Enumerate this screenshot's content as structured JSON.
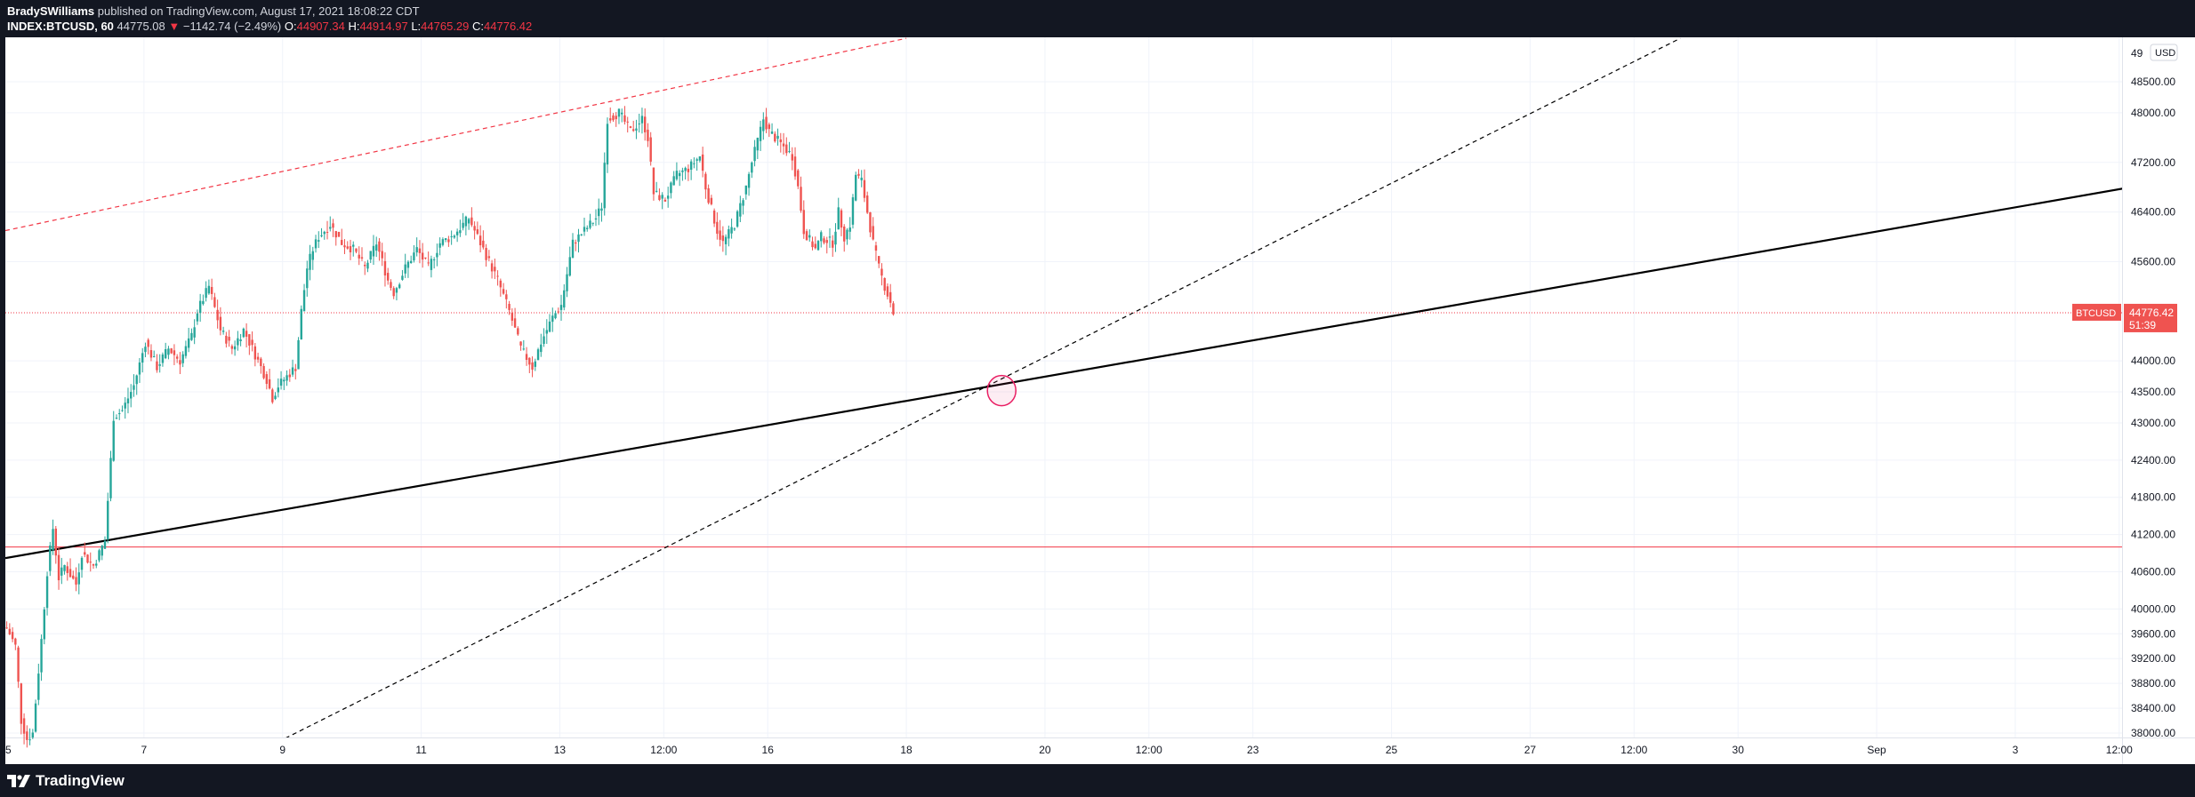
{
  "header": {
    "author": "BradySWilliams",
    "published_text": "published on TradingView.com, August 17, 2021 18:08:22 CDT",
    "symbol": "INDEX:BTCUSD, 60",
    "last": "44775.08",
    "change_arrow": "▼",
    "change": "−1142.74 (−2.49%)",
    "open_label": "O:",
    "open": "44907.34",
    "high_label": "H:",
    "high": "44914.97",
    "low_label": "L:",
    "low": "44765.29",
    "close_label": "C:",
    "close": "44776.42"
  },
  "footer": {
    "brand": "TradingView"
  },
  "colors": {
    "up": "#26a69a",
    "down": "#ef5350",
    "accent_red": "#f23645",
    "trend": "#000000",
    "background": "#131722"
  },
  "chart_data": {
    "type": "candlestick",
    "symbol": "BTCUSD",
    "interval": "60",
    "currency_label": "USD",
    "ylim": [
      37800,
      49200
    ],
    "y_ticks": [
      {
        "value": 48500,
        "label": "48500.00"
      },
      {
        "value": 48000,
        "label": "48000.00"
      },
      {
        "value": 47200,
        "label": "47200.00"
      },
      {
        "value": 46400,
        "label": "46400.00"
      },
      {
        "value": 45600,
        "label": "45600.00"
      },
      {
        "value": 44000,
        "label": "44000.00"
      },
      {
        "value": 43500,
        "label": "43500.00"
      },
      {
        "value": 43000,
        "label": "43000.00"
      },
      {
        "value": 42400,
        "label": "42400.00"
      },
      {
        "value": 41800,
        "label": "41800.00"
      },
      {
        "value": 41200,
        "label": "41200.00"
      },
      {
        "value": 40600,
        "label": "40600.00"
      },
      {
        "value": 40000,
        "label": "40000.00"
      },
      {
        "value": 39600,
        "label": "39600.00"
      },
      {
        "value": 39200,
        "label": "39200.00"
      },
      {
        "value": 38800,
        "label": "38800.00"
      },
      {
        "value": 38400,
        "label": "38400.00"
      },
      {
        "value": 38000,
        "label": "38000.00"
      }
    ],
    "y_top_partial_label": "49",
    "x_ticks": [
      {
        "t": 0,
        "label": "5"
      },
      {
        "t": 48,
        "label": "7"
      },
      {
        "t": 96,
        "label": "9"
      },
      {
        "t": 144,
        "label": "11"
      },
      {
        "t": 192,
        "label": "13"
      },
      {
        "t": 228,
        "label": "12:00"
      },
      {
        "t": 264,
        "label": "16"
      },
      {
        "t": 312,
        "label": "18"
      },
      {
        "t": 360,
        "label": "20"
      },
      {
        "t": 396,
        "label": "12:00"
      },
      {
        "t": 432,
        "label": "23"
      },
      {
        "t": 480,
        "label": "25"
      },
      {
        "t": 528,
        "label": "27"
      },
      {
        "t": 564,
        "label": "12:00"
      },
      {
        "t": 600,
        "label": "30"
      },
      {
        "t": 648,
        "label": "Sep"
      },
      {
        "t": 696,
        "label": "3"
      },
      {
        "t": 732,
        "label": "12:00"
      }
    ],
    "price_path": [
      [
        0,
        39700
      ],
      [
        3,
        39400
      ],
      [
        5,
        38200
      ],
      [
        7,
        37900
      ],
      [
        9,
        38000
      ],
      [
        12,
        39500
      ],
      [
        14,
        40600
      ],
      [
        16,
        41300
      ],
      [
        18,
        40500
      ],
      [
        20,
        40700
      ],
      [
        24,
        40400
      ],
      [
        26,
        40900
      ],
      [
        30,
        40700
      ],
      [
        34,
        41100
      ],
      [
        36,
        42400
      ],
      [
        37,
        43100
      ],
      [
        40,
        43200
      ],
      [
        44,
        43600
      ],
      [
        48,
        44300
      ],
      [
        52,
        43900
      ],
      [
        56,
        44200
      ],
      [
        60,
        44000
      ],
      [
        64,
        44400
      ],
      [
        66,
        44800
      ],
      [
        70,
        45200
      ],
      [
        74,
        44500
      ],
      [
        78,
        44200
      ],
      [
        82,
        44500
      ],
      [
        86,
        44100
      ],
      [
        90,
        43700
      ],
      [
        92,
        43400
      ],
      [
        94,
        43600
      ],
      [
        98,
        43800
      ],
      [
        100,
        43900
      ],
      [
        102,
        44800
      ],
      [
        104,
        45500
      ],
      [
        106,
        45800
      ],
      [
        108,
        46000
      ],
      [
        112,
        46200
      ],
      [
        116,
        45900
      ],
      [
        120,
        45800
      ],
      [
        124,
        45500
      ],
      [
        128,
        45900
      ],
      [
        132,
        45300
      ],
      [
        134,
        45100
      ],
      [
        138,
        45500
      ],
      [
        142,
        45800
      ],
      [
        146,
        45500
      ],
      [
        150,
        45900
      ],
      [
        154,
        46000
      ],
      [
        158,
        46200
      ],
      [
        160,
        46300
      ],
      [
        164,
        45900
      ],
      [
        166,
        45700
      ],
      [
        170,
        45300
      ],
      [
        174,
        44800
      ],
      [
        178,
        44200
      ],
      [
        182,
        43900
      ],
      [
        185,
        44300
      ],
      [
        189,
        44700
      ],
      [
        192,
        44900
      ],
      [
        196,
        45900
      ],
      [
        200,
        46100
      ],
      [
        204,
        46300
      ],
      [
        206,
        46500
      ],
      [
        208,
        47900
      ],
      [
        212,
        48000
      ],
      [
        216,
        47700
      ],
      [
        220,
        47900
      ],
      [
        222,
        47600
      ],
      [
        224,
        46700
      ],
      [
        228,
        46600
      ],
      [
        232,
        47000
      ],
      [
        236,
        47100
      ],
      [
        240,
        47300
      ],
      [
        242,
        46800
      ],
      [
        246,
        46100
      ],
      [
        248,
        45900
      ],
      [
        252,
        46200
      ],
      [
        254,
        46500
      ],
      [
        256,
        46800
      ],
      [
        258,
        47200
      ],
      [
        262,
        47900
      ],
      [
        264,
        47700
      ],
      [
        268,
        47500
      ],
      [
        272,
        47300
      ],
      [
        274,
        46800
      ],
      [
        276,
        46100
      ],
      [
        280,
        45800
      ],
      [
        282,
        46000
      ],
      [
        286,
        45900
      ],
      [
        288,
        46400
      ],
      [
        290,
        46000
      ],
      [
        292,
        46200
      ],
      [
        294,
        47000
      ],
      [
        296,
        46900
      ],
      [
        298,
        46400
      ],
      [
        300,
        45900
      ],
      [
        302,
        45500
      ],
      [
        304,
        45200
      ],
      [
        306,
        44950
      ],
      [
        307,
        44776.42
      ]
    ],
    "current_price": 44776.42,
    "current_price_label": "44776.42",
    "countdown": "51:39",
    "symbol_tag": "BTCUSD",
    "horizontal_level": 41000,
    "trendlines": [
      {
        "name": "main-trend",
        "style": "solid",
        "color": "#000000",
        "t1": 0,
        "p1": 40820,
        "t2": 736,
        "p2": 46800
      },
      {
        "name": "dashed-trend",
        "style": "dashed",
        "color": "#000000",
        "t1": 92,
        "p1": 37800,
        "t2": 580,
        "p2": 49200
      },
      {
        "name": "upper-channel",
        "style": "dashed",
        "color": "#f23645",
        "t1": 0,
        "p1": 46100,
        "t2": 312,
        "p2": 49200
      }
    ],
    "marker": {
      "t": 345,
      "p": 43520,
      "shape": "circle",
      "color": "#e91e63"
    }
  }
}
